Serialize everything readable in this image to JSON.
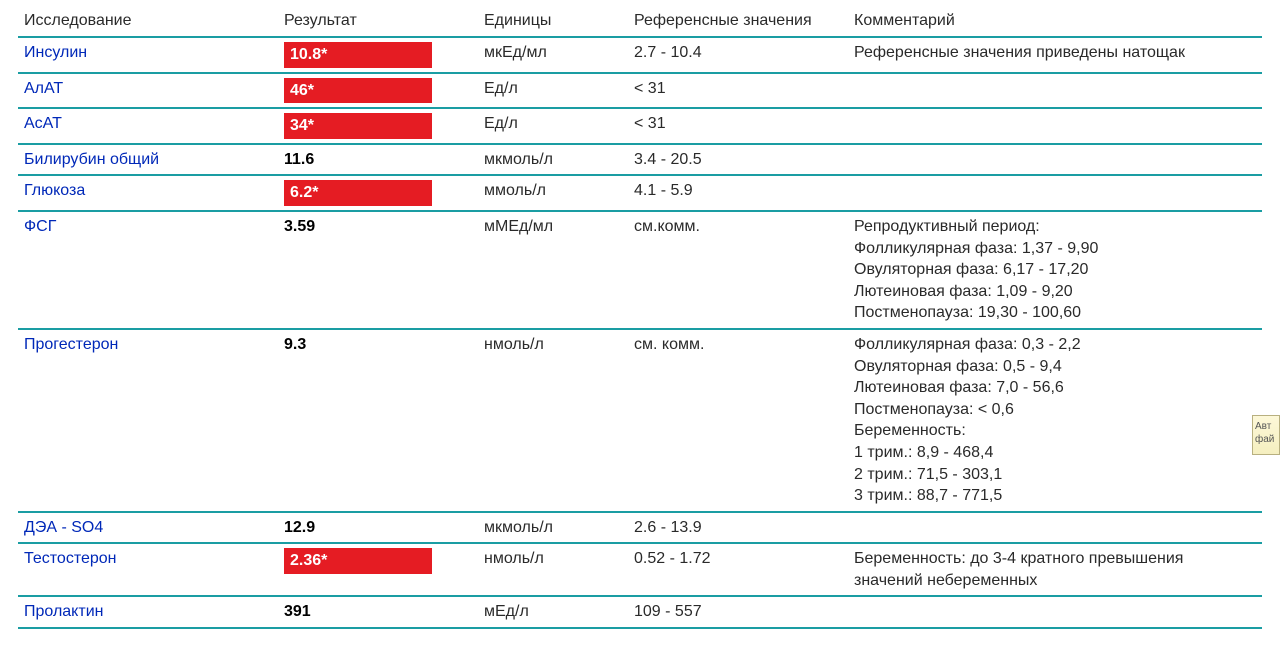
{
  "table": {
    "border_color": "#1a9da3",
    "header_color": "#2a2a2a",
    "test_name_color": "#0028b8",
    "abnormal_bg": "#e51c23",
    "abnormal_text_color": "#ffffff",
    "normal_text_color": "#000000",
    "body_text_color": "#2a2a2a",
    "font_size": 16,
    "columns": {
      "test": "Исследование",
      "result": "Результат",
      "units": "Единицы",
      "ref": "Референсные значения",
      "comment": "Комментарий"
    },
    "rows": [
      {
        "test": "Инсулин",
        "result": "10.8*",
        "abnormal": true,
        "units": "мкЕд/мл",
        "ref": "2.7 - 10.4",
        "comment": "Референсные значения приведены натощак"
      },
      {
        "test": "АлАТ",
        "result": "46*",
        "abnormal": true,
        "units": "Ед/л",
        "ref": "< 31",
        "comment": ""
      },
      {
        "test": "АсАТ",
        "result": "34*",
        "abnormal": true,
        "units": "Ед/л",
        "ref": "< 31",
        "comment": ""
      },
      {
        "test": "Билирубин общий",
        "result": "11.6",
        "abnormal": false,
        "units": "мкмоль/л",
        "ref": "3.4 - 20.5",
        "comment": ""
      },
      {
        "test": "Глюкоза",
        "result": "6.2*",
        "abnormal": true,
        "units": "ммоль/л",
        "ref": "4.1 - 5.9",
        "comment": ""
      },
      {
        "test": "ФСГ",
        "result": "3.59",
        "abnormal": false,
        "units": "мМЕд/мл",
        "ref": "см.комм.",
        "comment": "Репродуктивный период:\nФолликулярная фаза: 1,37 - 9,90\nОвуляторная фаза: 6,17 - 17,20\nЛютеиновая фаза: 1,09 - 9,20\nПостменопауза: 19,30 - 100,60"
      },
      {
        "test": "Прогестерон",
        "result": "9.3",
        "abnormal": false,
        "units": "нмоль/л",
        "ref": "см. комм.",
        "comment": "Фолликулярная фаза: 0,3 - 2,2\nОвуляторная фаза: 0,5 - 9,4\nЛютеиновая фаза: 7,0 - 56,6\nПостменопауза: < 0,6\nБеременность:\n1 трим.: 8,9 - 468,4\n2 трим.: 71,5 - 303,1\n3 трим.: 88,7 - 771,5"
      },
      {
        "test": "ДЭА - SO4",
        "result": "12.9",
        "abnormal": false,
        "units": "мкмоль/л",
        "ref": "2.6 - 13.9",
        "comment": ""
      },
      {
        "test": "Тестостерон",
        "result": "2.36*",
        "abnormal": true,
        "units": "нмоль/л",
        "ref": "0.52 - 1.72",
        "comment": "Беременность: до 3-4 кратного превышения значений небеременных"
      },
      {
        "test": "Пролактин",
        "result": "391",
        "abnormal": false,
        "units": "мЕд/л",
        "ref": "109 - 557",
        "comment": ""
      }
    ]
  },
  "side_widget": {
    "line1": "Авт",
    "line2": "фай"
  }
}
